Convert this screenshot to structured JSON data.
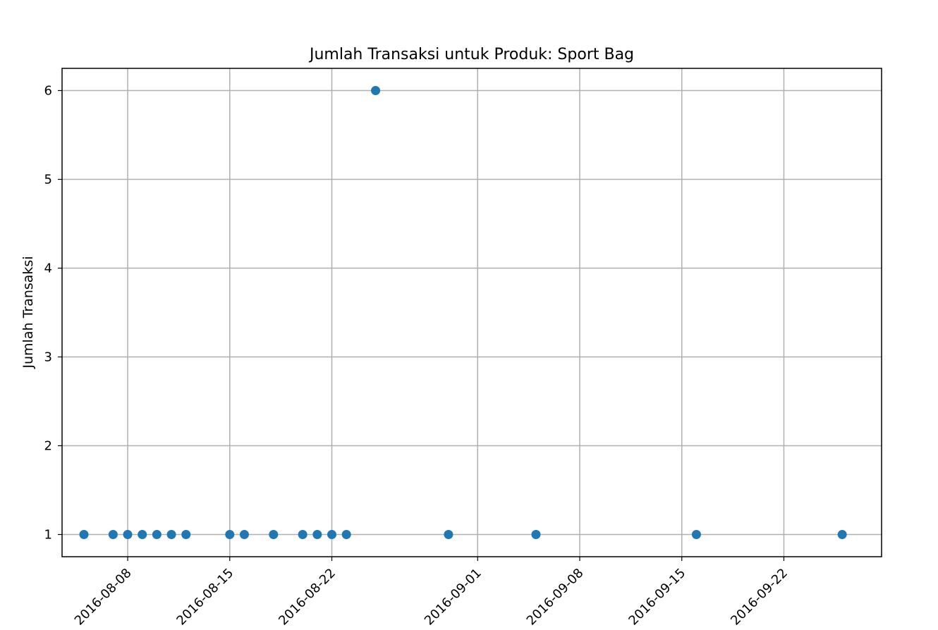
{
  "chart_data": {
    "type": "scatter",
    "title": "Jumlah Transaksi untuk Produk: Sport Bag",
    "xlabel": "",
    "ylabel": "Jumlah Transaksi",
    "x_axis_type": "date",
    "xlim": [
      "2016-08-03",
      "2016-09-29"
    ],
    "ylim": [
      0.75,
      6.25
    ],
    "x_ticks": [
      "2016-08-08",
      "2016-08-15",
      "2016-08-22",
      "2016-09-01",
      "2016-09-08",
      "2016-09-15",
      "2016-09-22"
    ],
    "y_ticks": [
      1,
      2,
      3,
      4,
      5,
      6
    ],
    "grid": true,
    "legend": "none",
    "marker_color": "#1f77b4",
    "points": [
      {
        "x": "2016-08-05",
        "y": 1
      },
      {
        "x": "2016-08-07",
        "y": 1
      },
      {
        "x": "2016-08-08",
        "y": 1
      },
      {
        "x": "2016-08-09",
        "y": 1
      },
      {
        "x": "2016-08-10",
        "y": 1
      },
      {
        "x": "2016-08-11",
        "y": 1
      },
      {
        "x": "2016-08-12",
        "y": 1
      },
      {
        "x": "2016-08-15",
        "y": 1
      },
      {
        "x": "2016-08-16",
        "y": 1
      },
      {
        "x": "2016-08-18",
        "y": 1
      },
      {
        "x": "2016-08-20",
        "y": 1
      },
      {
        "x": "2016-08-21",
        "y": 1
      },
      {
        "x": "2016-08-22",
        "y": 1
      },
      {
        "x": "2016-08-23",
        "y": 1
      },
      {
        "x": "2016-08-25",
        "y": 6
      },
      {
        "x": "2016-08-30",
        "y": 1
      },
      {
        "x": "2016-09-05",
        "y": 1
      },
      {
        "x": "2016-09-16",
        "y": 1
      },
      {
        "x": "2016-09-26",
        "y": 1
      }
    ]
  }
}
